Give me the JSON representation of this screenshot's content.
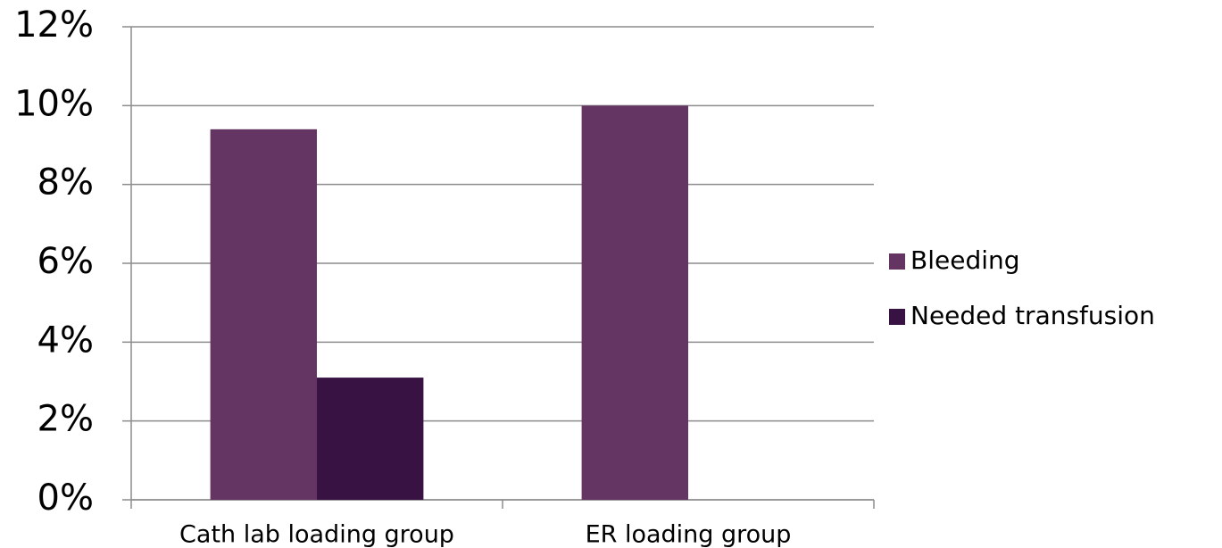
{
  "chart_data": {
    "type": "bar",
    "categories": [
      "Cath lab loading group",
      "ER loading group"
    ],
    "series": [
      {
        "name": "Bleeding",
        "color": "#643462",
        "values": [
          9.4,
          10
        ]
      },
      {
        "name": "Needed transfusion",
        "color": "#371242",
        "values": [
          3.1,
          0
        ]
      }
    ],
    "ylim": [
      0,
      12
    ],
    "yticks": [
      {
        "value": 0,
        "label": "0%"
      },
      {
        "value": 2,
        "label": "2%"
      },
      {
        "value": 4,
        "label": "4%"
      },
      {
        "value": 6,
        "label": "6%"
      },
      {
        "value": 8,
        "label": "8%"
      },
      {
        "value": 10,
        "label": "10%"
      },
      {
        "value": 12,
        "label": "12%"
      }
    ],
    "grid": true,
    "legend": "right"
  }
}
